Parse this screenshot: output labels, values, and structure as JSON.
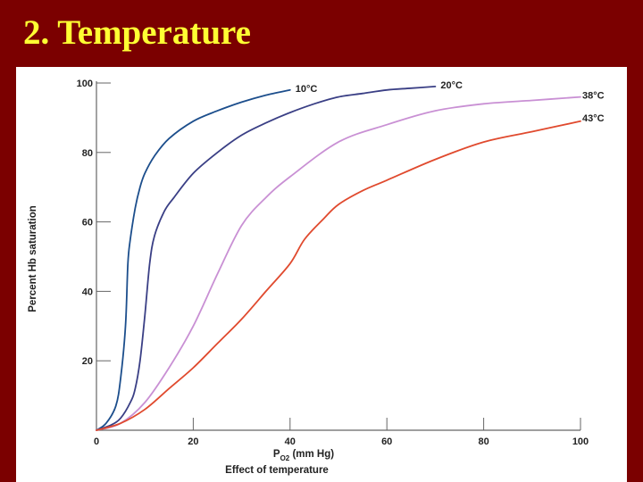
{
  "slide": {
    "title": "2. Temperature",
    "background": "#7b0000",
    "title_color": "#ffff33"
  },
  "chart_data": {
    "type": "line",
    "xlabel_main": "P",
    "xlabel_sub": "O2",
    "xlabel_rest": " (mm Hg)",
    "ylabel": "Percent Hb saturation",
    "caption": "Effect of temperature",
    "xlim": [
      0,
      100
    ],
    "ylim": [
      0,
      100
    ],
    "xticks": [
      0,
      20,
      40,
      60,
      80,
      100
    ],
    "yticks": [
      20,
      40,
      60,
      80,
      100
    ],
    "x_origin_label": "0",
    "grid": false,
    "series": [
      {
        "name": "10°C",
        "color": "#1c4e8c",
        "x": [
          0,
          2,
          4,
          5,
          6,
          6.5,
          7,
          8,
          9,
          10,
          12,
          15,
          20,
          25,
          30,
          35,
          40
        ],
        "y": [
          0,
          2,
          7,
          15,
          30,
          48,
          55,
          64,
          70,
          74,
          79,
          84,
          89,
          92,
          94.5,
          96.5,
          98
        ]
      },
      {
        "name": "20°C",
        "color": "#3a3f85",
        "x": [
          0,
          3,
          5,
          7,
          8,
          9,
          10,
          11,
          12,
          14,
          16,
          20,
          25,
          30,
          35,
          40,
          45,
          50,
          55,
          60,
          65,
          70
        ],
        "y": [
          0,
          1.5,
          3.5,
          8,
          12,
          20,
          33,
          48,
          56,
          63,
          67,
          74,
          80,
          85,
          88.5,
          91.5,
          94,
          96,
          97,
          98,
          98.5,
          99
        ]
      },
      {
        "name": "38°C",
        "color": "#c990d4",
        "x": [
          0,
          5,
          10,
          15,
          20,
          25,
          30,
          35,
          40,
          50,
          60,
          70,
          80,
          90,
          100
        ],
        "y": [
          0,
          2,
          8,
          18,
          30,
          45,
          59,
          67,
          73,
          83,
          88,
          92,
          94,
          95,
          96
        ]
      },
      {
        "name": "43°C",
        "color": "#e04a2e",
        "x": [
          0,
          5,
          10,
          15,
          20,
          25,
          30,
          35,
          40,
          43,
          47,
          50,
          55,
          60,
          70,
          80,
          90,
          100
        ],
        "y": [
          0,
          2,
          6,
          12,
          18,
          25,
          32,
          40,
          48,
          55,
          61,
          65,
          69,
          72,
          78,
          83,
          86,
          89
        ]
      }
    ]
  }
}
